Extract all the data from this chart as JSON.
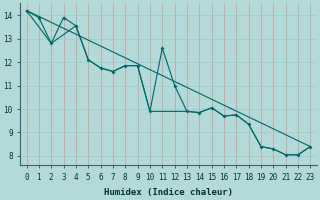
{
  "title": "",
  "xlabel": "Humidex (Indice chaleur)",
  "ylabel": "",
  "bg_color": "#b3d9d9",
  "grid_color_major": "#cc9999",
  "grid_color_minor": "#99cccc",
  "line_color": "#006666",
  "zigzag": {
    "x": [
      0,
      1,
      2,
      3,
      4,
      5,
      6,
      7,
      8,
      9,
      10,
      11,
      12,
      13,
      14,
      15,
      16,
      17,
      18,
      19,
      20,
      21,
      22,
      23
    ],
    "y": [
      14.2,
      13.9,
      12.8,
      13.9,
      13.55,
      12.1,
      11.75,
      11.6,
      11.85,
      11.85,
      9.9,
      12.6,
      11.0,
      9.9,
      9.85,
      10.05,
      9.7,
      9.75,
      9.35,
      8.4,
      8.3,
      8.05,
      8.05,
      8.4
    ]
  },
  "diagonal": {
    "x": [
      0,
      23
    ],
    "y": [
      14.2,
      8.4
    ]
  },
  "envelope_bottom": {
    "x": [
      0,
      2,
      4,
      5,
      6,
      7,
      8,
      9,
      10,
      13,
      14,
      15,
      16,
      17,
      18,
      19,
      20,
      21,
      22,
      23
    ],
    "y": [
      14.2,
      12.8,
      13.55,
      12.1,
      11.75,
      11.6,
      11.85,
      11.85,
      9.9,
      9.9,
      9.85,
      10.05,
      9.7,
      9.75,
      9.35,
      8.4,
      8.3,
      8.05,
      8.05,
      8.4
    ]
  },
  "xlim": [
    -0.5,
    23.5
  ],
  "ylim": [
    7.6,
    14.5
  ],
  "yticks": [
    8,
    9,
    10,
    11,
    12,
    13,
    14
  ],
  "xticks": [
    0,
    1,
    2,
    3,
    4,
    5,
    6,
    7,
    8,
    9,
    10,
    11,
    12,
    13,
    14,
    15,
    16,
    17,
    18,
    19,
    20,
    21,
    22,
    23
  ]
}
